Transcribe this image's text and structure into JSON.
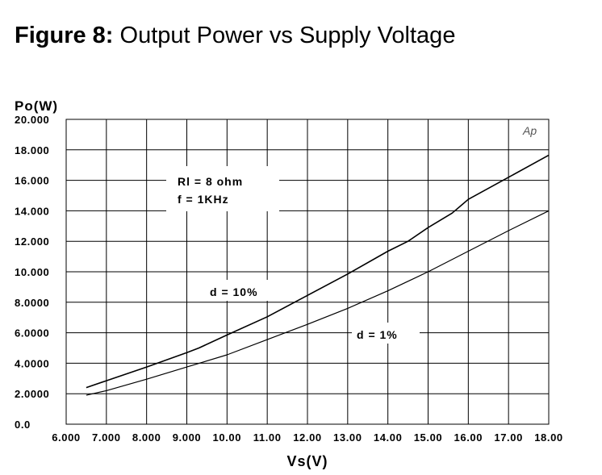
{
  "figure": {
    "label": "Figure 8:",
    "title": "Output Power vs Supply Voltage"
  },
  "chart_data": {
    "type": "line",
    "title": "Output Power vs Supply Voltage",
    "xlabel": "Vs(V)",
    "ylabel": "Po(W)",
    "xlim": [
      6,
      18
    ],
    "ylim": [
      0,
      20
    ],
    "grid": true,
    "x_ticks": [
      {
        "v": 6,
        "label": "6.000"
      },
      {
        "v": 7,
        "label": "7.000"
      },
      {
        "v": 8,
        "label": "8.000"
      },
      {
        "v": 9,
        "label": "9.000"
      },
      {
        "v": 10,
        "label": "10.00"
      },
      {
        "v": 11,
        "label": "11.00"
      },
      {
        "v": 12,
        "label": "12.00"
      },
      {
        "v": 13,
        "label": "13.00"
      },
      {
        "v": 14,
        "label": "14.00"
      },
      {
        "v": 15,
        "label": "15.00"
      },
      {
        "v": 16,
        "label": "16.00"
      },
      {
        "v": 17,
        "label": "17.00"
      },
      {
        "v": 18,
        "label": "18.00"
      }
    ],
    "y_ticks": [
      {
        "v": 0,
        "label": "0.0"
      },
      {
        "v": 2,
        "label": "2.0000"
      },
      {
        "v": 4,
        "label": "4.0000"
      },
      {
        "v": 6,
        "label": "6.0000"
      },
      {
        "v": 8,
        "label": "8.0000"
      },
      {
        "v": 10,
        "label": "10.000"
      },
      {
        "v": 12,
        "label": "12.000"
      },
      {
        "v": 14,
        "label": "14.000"
      },
      {
        "v": 16,
        "label": "16.000"
      },
      {
        "v": 18,
        "label": "18.000"
      },
      {
        "v": 20,
        "label": "20.000"
      }
    ],
    "series": [
      {
        "name": "d = 10%",
        "x": [
          6.5,
          7,
          8,
          9,
          9.3,
          10,
          11,
          12,
          13,
          14,
          14.5,
          15,
          15.6,
          16,
          17,
          18
        ],
        "y": [
          2.4,
          2.85,
          3.75,
          4.7,
          5.0,
          5.85,
          7.05,
          8.45,
          9.85,
          11.35,
          12.0,
          12.9,
          13.85,
          14.75,
          16.2,
          17.65
        ]
      },
      {
        "name": "d = 1%",
        "x": [
          6.5,
          7,
          8,
          9,
          10,
          11,
          12,
          13,
          14,
          15,
          16,
          17,
          18
        ],
        "y": [
          1.9,
          2.2,
          2.95,
          3.75,
          4.55,
          5.55,
          6.55,
          7.6,
          8.75,
          10.0,
          11.35,
          12.7,
          14.0
        ]
      }
    ],
    "annotations": [
      {
        "id": "conditions",
        "lines": [
          "Rl = 8 ohm",
          "f = 1KHz"
        ]
      },
      {
        "id": "d10",
        "text": "d = 10%"
      },
      {
        "id": "d1",
        "text": "d = 1%"
      },
      {
        "id": "mark",
        "text": "Ap"
      }
    ]
  }
}
